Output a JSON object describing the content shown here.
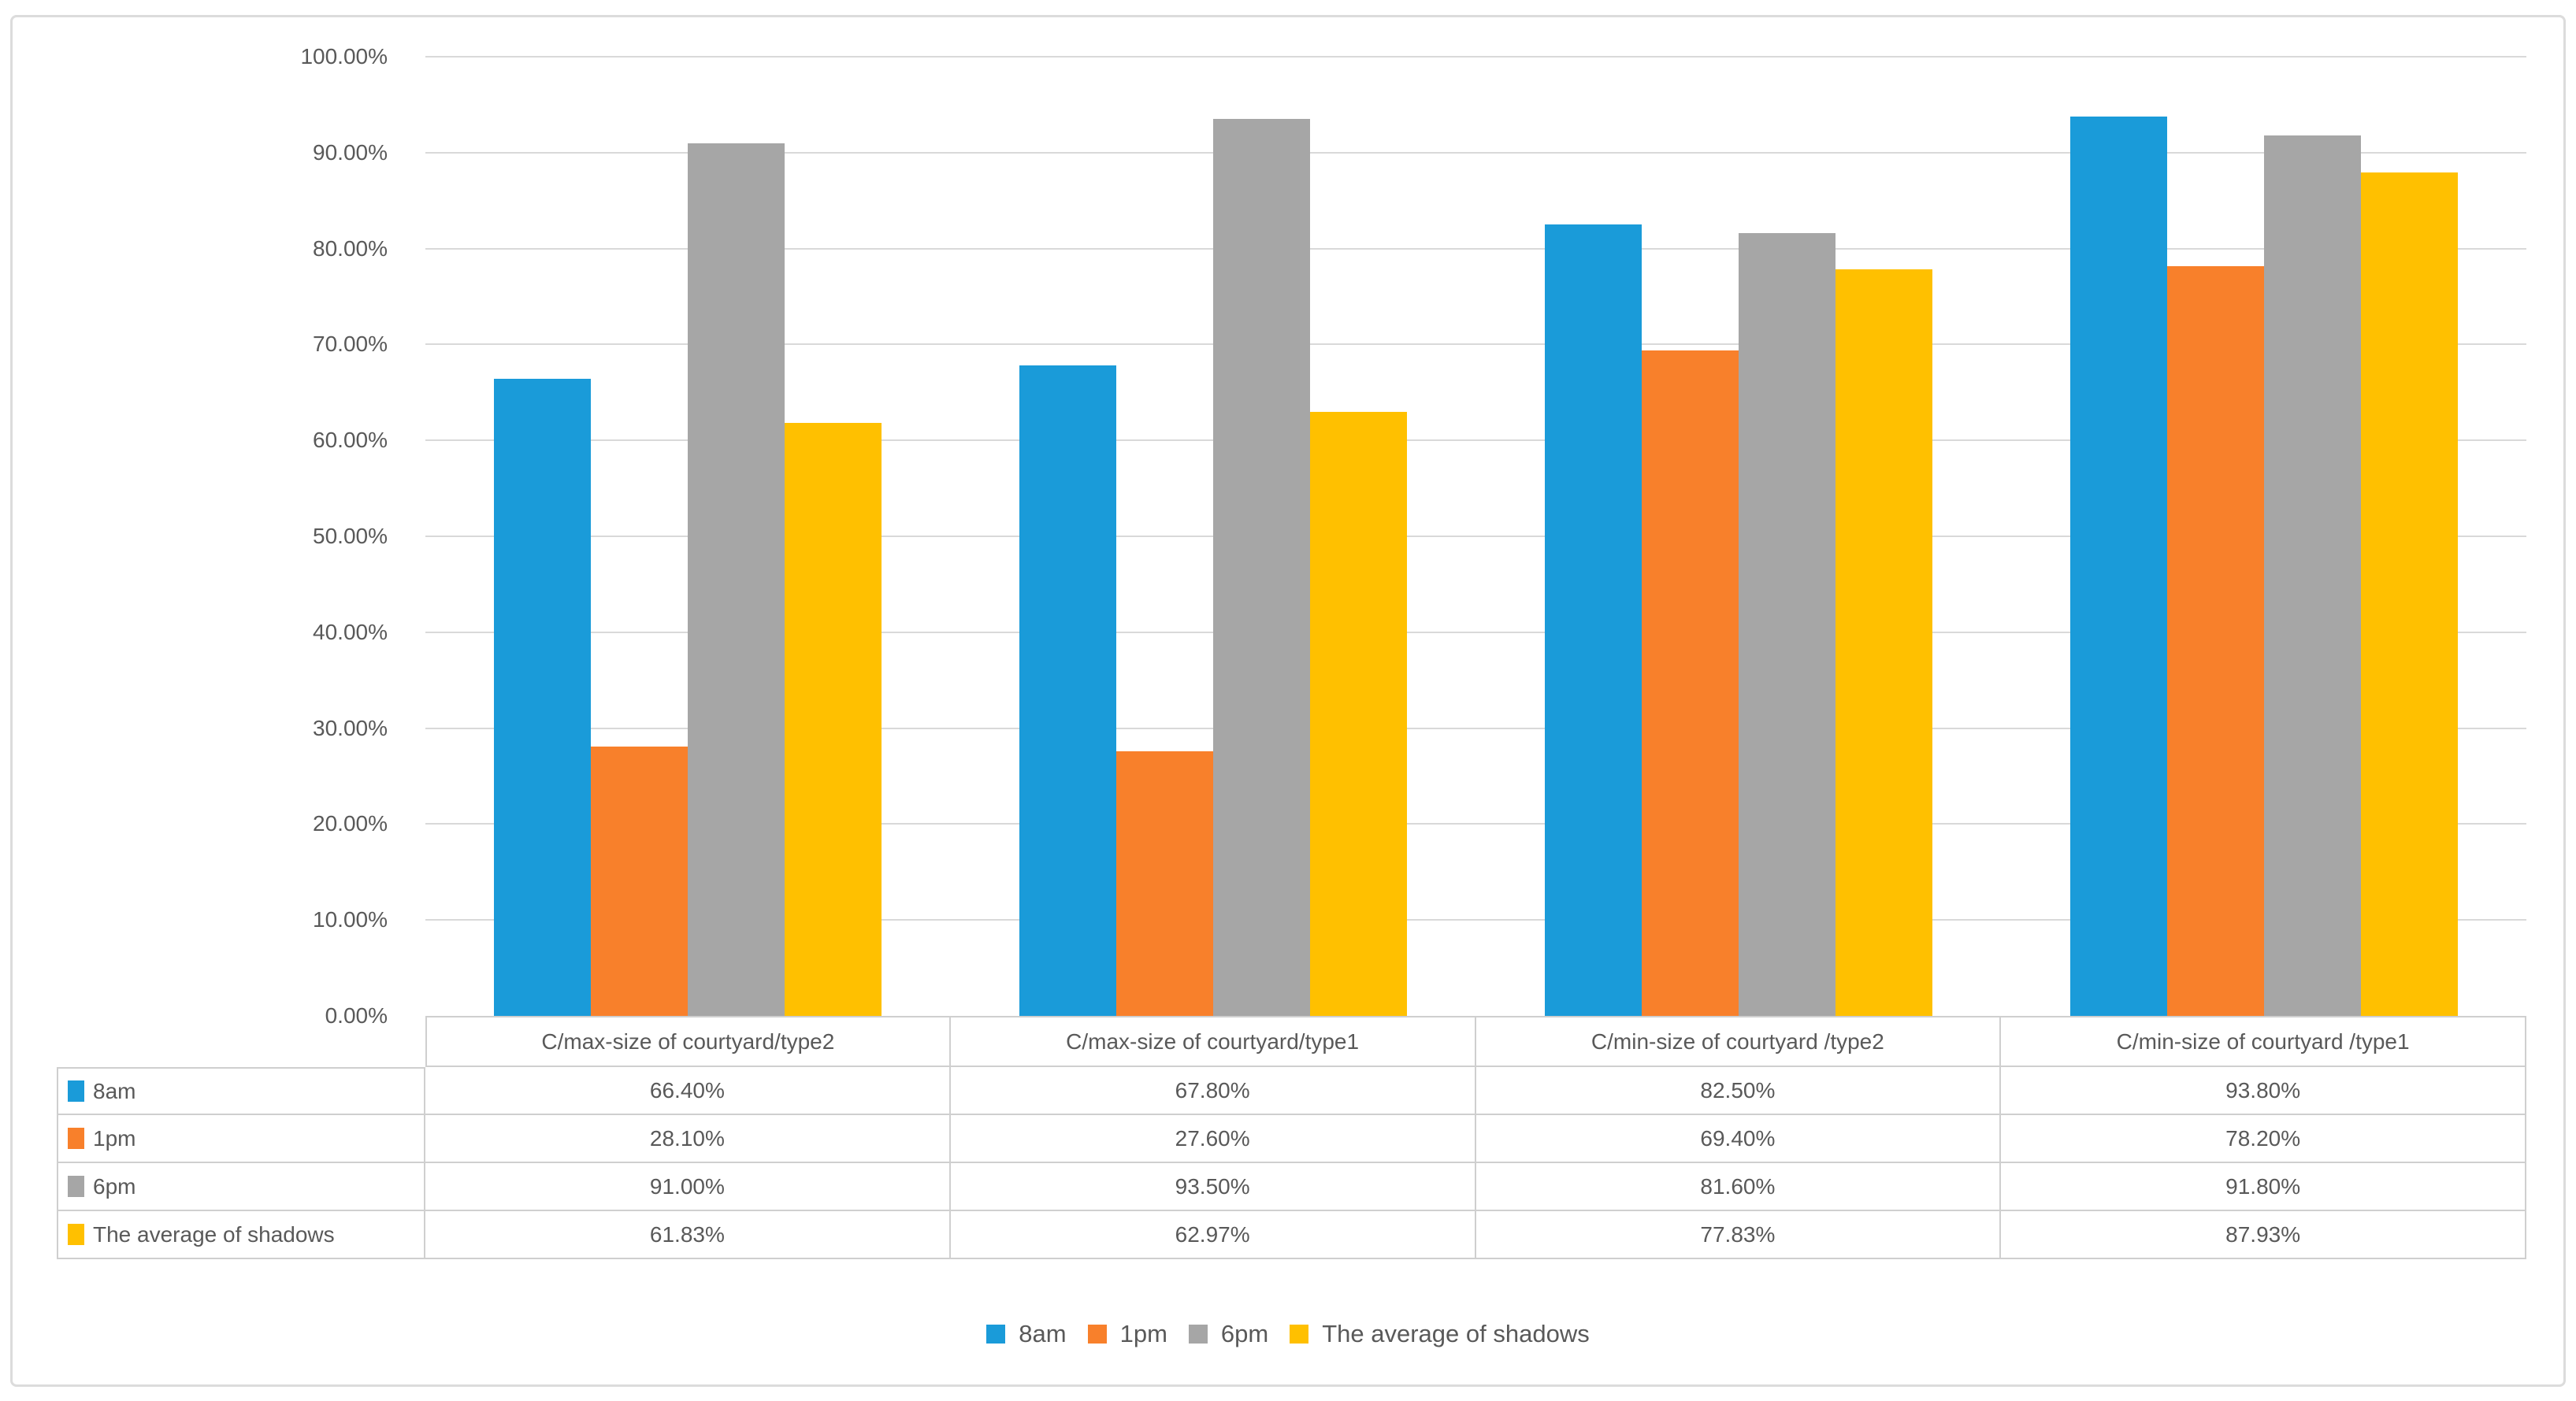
{
  "colors": {
    "series_8am": "#1a9bd9",
    "series_1pm": "#f8802b",
    "series_6pm": "#a6a6a6",
    "series_average": "#ffc000",
    "gridline": "#d9d9d9",
    "table_border": "#cfcfcf",
    "text": "#595959",
    "figure_border": "#dcdcdc"
  },
  "chart_data": {
    "type": "bar",
    "title": "",
    "xlabel": "",
    "ylabel": "",
    "categories": [
      "C/max-size of courtyard/type2",
      "C/max-size of courtyard/type1",
      "C/min-size of courtyard /type2",
      "C/min-size of courtyard /type1"
    ],
    "series": [
      {
        "name": "8am",
        "color": "#1a9bd9",
        "values": [
          66.4,
          67.8,
          82.5,
          93.8
        ]
      },
      {
        "name": "1pm",
        "color": "#f8802b",
        "values": [
          28.1,
          27.6,
          69.4,
          78.2
        ]
      },
      {
        "name": "6pm",
        "color": "#a6a6a6",
        "values": [
          91.0,
          93.5,
          81.6,
          91.8
        ]
      },
      {
        "name": "The average of shadows",
        "color": "#ffc000",
        "values": [
          61.83,
          62.97,
          77.83,
          87.93
        ]
      }
    ],
    "y_axis": {
      "min": 0,
      "max": 100,
      "tick_step": 10,
      "tick_labels": [
        "0.00%",
        "10.00%",
        "20.00%",
        "30.00%",
        "40.00%",
        "50.00%",
        "60.00%",
        "70.00%",
        "80.00%",
        "90.00%",
        "100.00%"
      ]
    },
    "grid": true,
    "legend_position": "bottom",
    "legend_labels": [
      "8am",
      "1pm",
      "6pm",
      "The average of shadows"
    ],
    "data_table": {
      "shown": true,
      "rows": [
        {
          "label": "8am",
          "cells": [
            "66.40%",
            "67.80%",
            "82.50%",
            "93.80%"
          ]
        },
        {
          "label": "1pm",
          "cells": [
            "28.10%",
            "27.60%",
            "69.40%",
            "78.20%"
          ]
        },
        {
          "label": "6pm",
          "cells": [
            "91.00%",
            "93.50%",
            "81.60%",
            "91.80%"
          ]
        },
        {
          "label": "The average of shadows",
          "cells": [
            "61.83%",
            "62.97%",
            "77.83%",
            "87.93%"
          ]
        }
      ]
    }
  }
}
